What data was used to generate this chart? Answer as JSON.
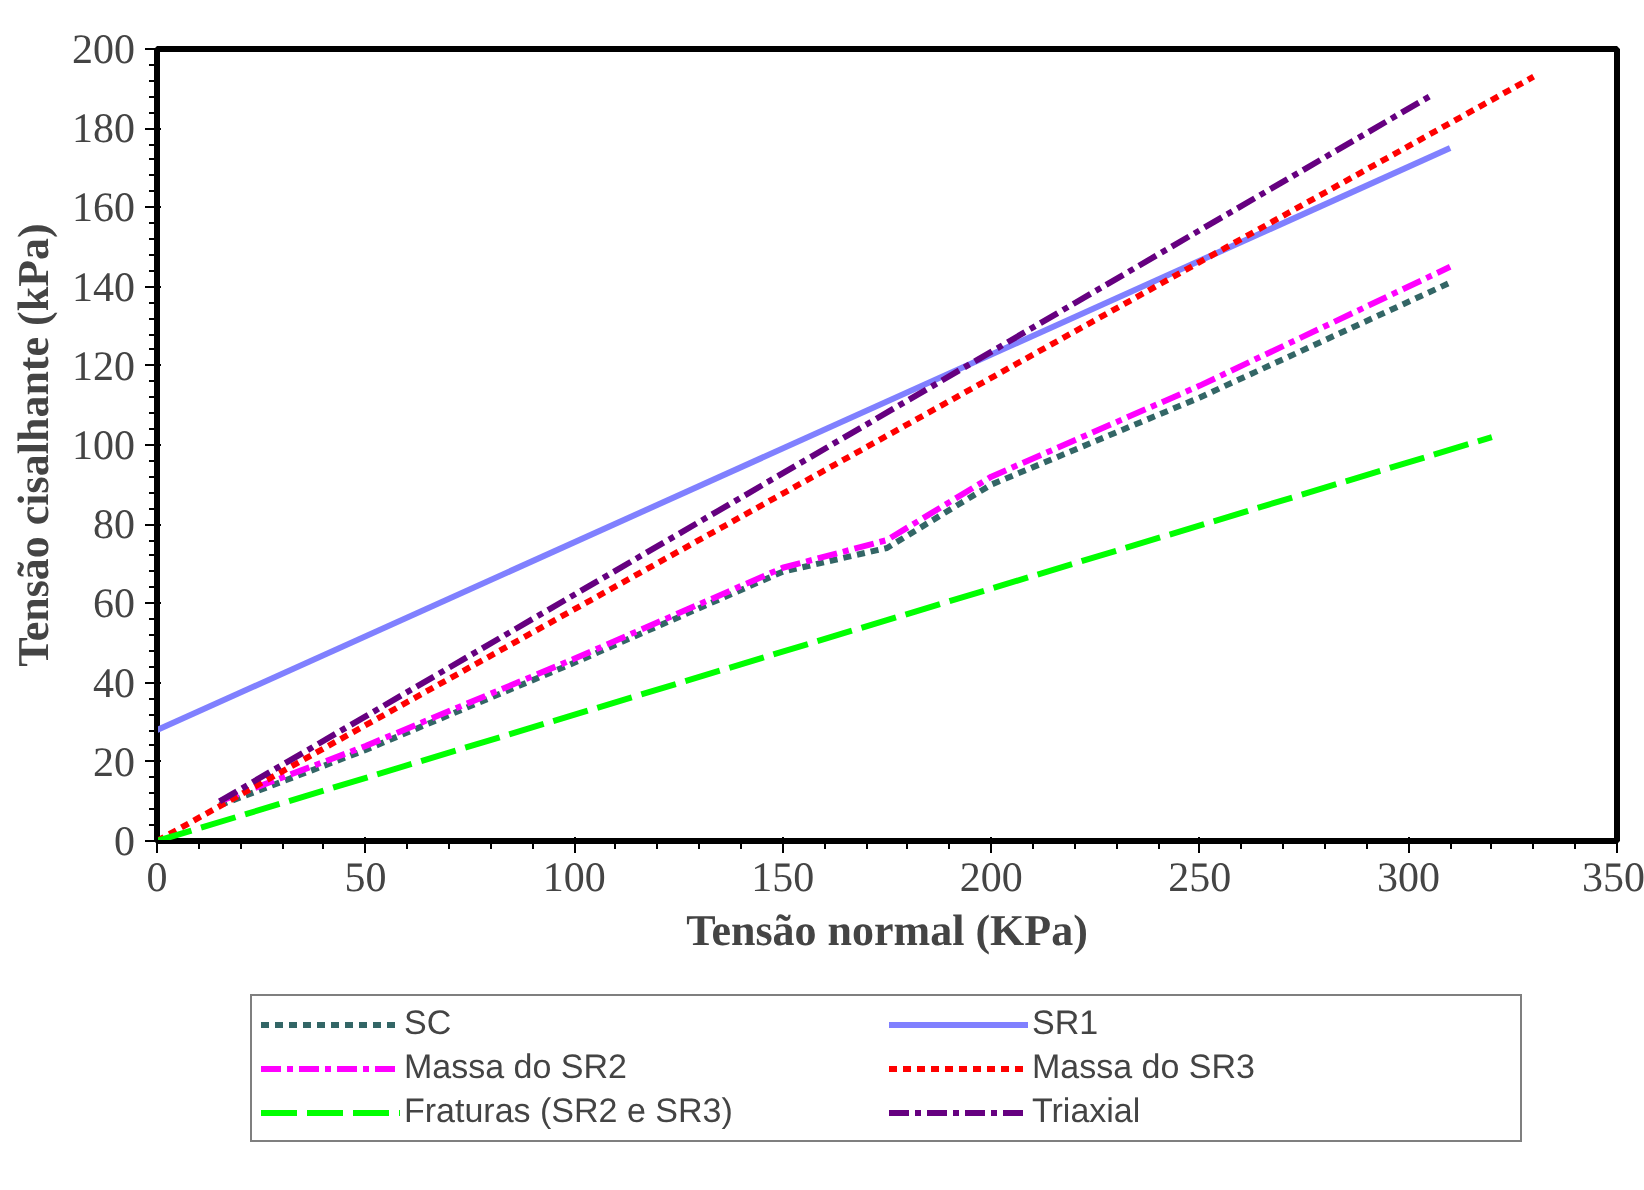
{
  "chart_data": {
    "type": "line",
    "xlabel": "Tensão normal (KPa)",
    "ylabel": "Tensão cisalhante (kPa)",
    "xlim": [
      0,
      350
    ],
    "xticks": [
      0,
      50,
      100,
      150,
      200,
      250,
      300,
      350
    ],
    "ylim": [
      0,
      200
    ],
    "yticks": [
      0,
      20,
      40,
      60,
      80,
      100,
      120,
      140,
      160,
      180,
      200
    ],
    "grid": false,
    "legend": "bottom",
    "marker": "none",
    "series": [
      {
        "name": "SC",
        "color": "#336666",
        "line_style": "dotted",
        "x": [
          15,
          50,
          100,
          150,
          175,
          200,
          250,
          310
        ],
        "values": [
          9,
          23,
          45,
          68,
          74,
          90,
          112,
          141
        ]
      },
      {
        "name": "SR1",
        "color": "#8080ff",
        "line_style": "solid",
        "x": [
          0,
          310
        ],
        "values": [
          28,
          175
        ]
      },
      {
        "name": "Massa do SR2",
        "color": "#ff00ff",
        "line_style": "dashed",
        "x": [
          15,
          50,
          100,
          150,
          175,
          200,
          250,
          310
        ],
        "values": [
          10,
          24,
          46,
          69,
          76,
          92,
          115,
          145
        ]
      },
      {
        "name": "Massa do SR3",
        "color": "#ff0000",
        "line_style": "dotted",
        "x": [
          0,
          330
        ],
        "values": [
          0,
          193
        ]
      },
      {
        "name": "Fraturas (SR2 e SR3)",
        "color": "#00ff00",
        "line_style": "dashed",
        "x": [
          0,
          320
        ],
        "values": [
          0,
          102
        ]
      },
      {
        "name": "Triaxial",
        "color": "#660080",
        "line_style": "dashed",
        "x": [
          15,
          305
        ],
        "values": [
          10,
          188
        ]
      }
    ]
  }
}
